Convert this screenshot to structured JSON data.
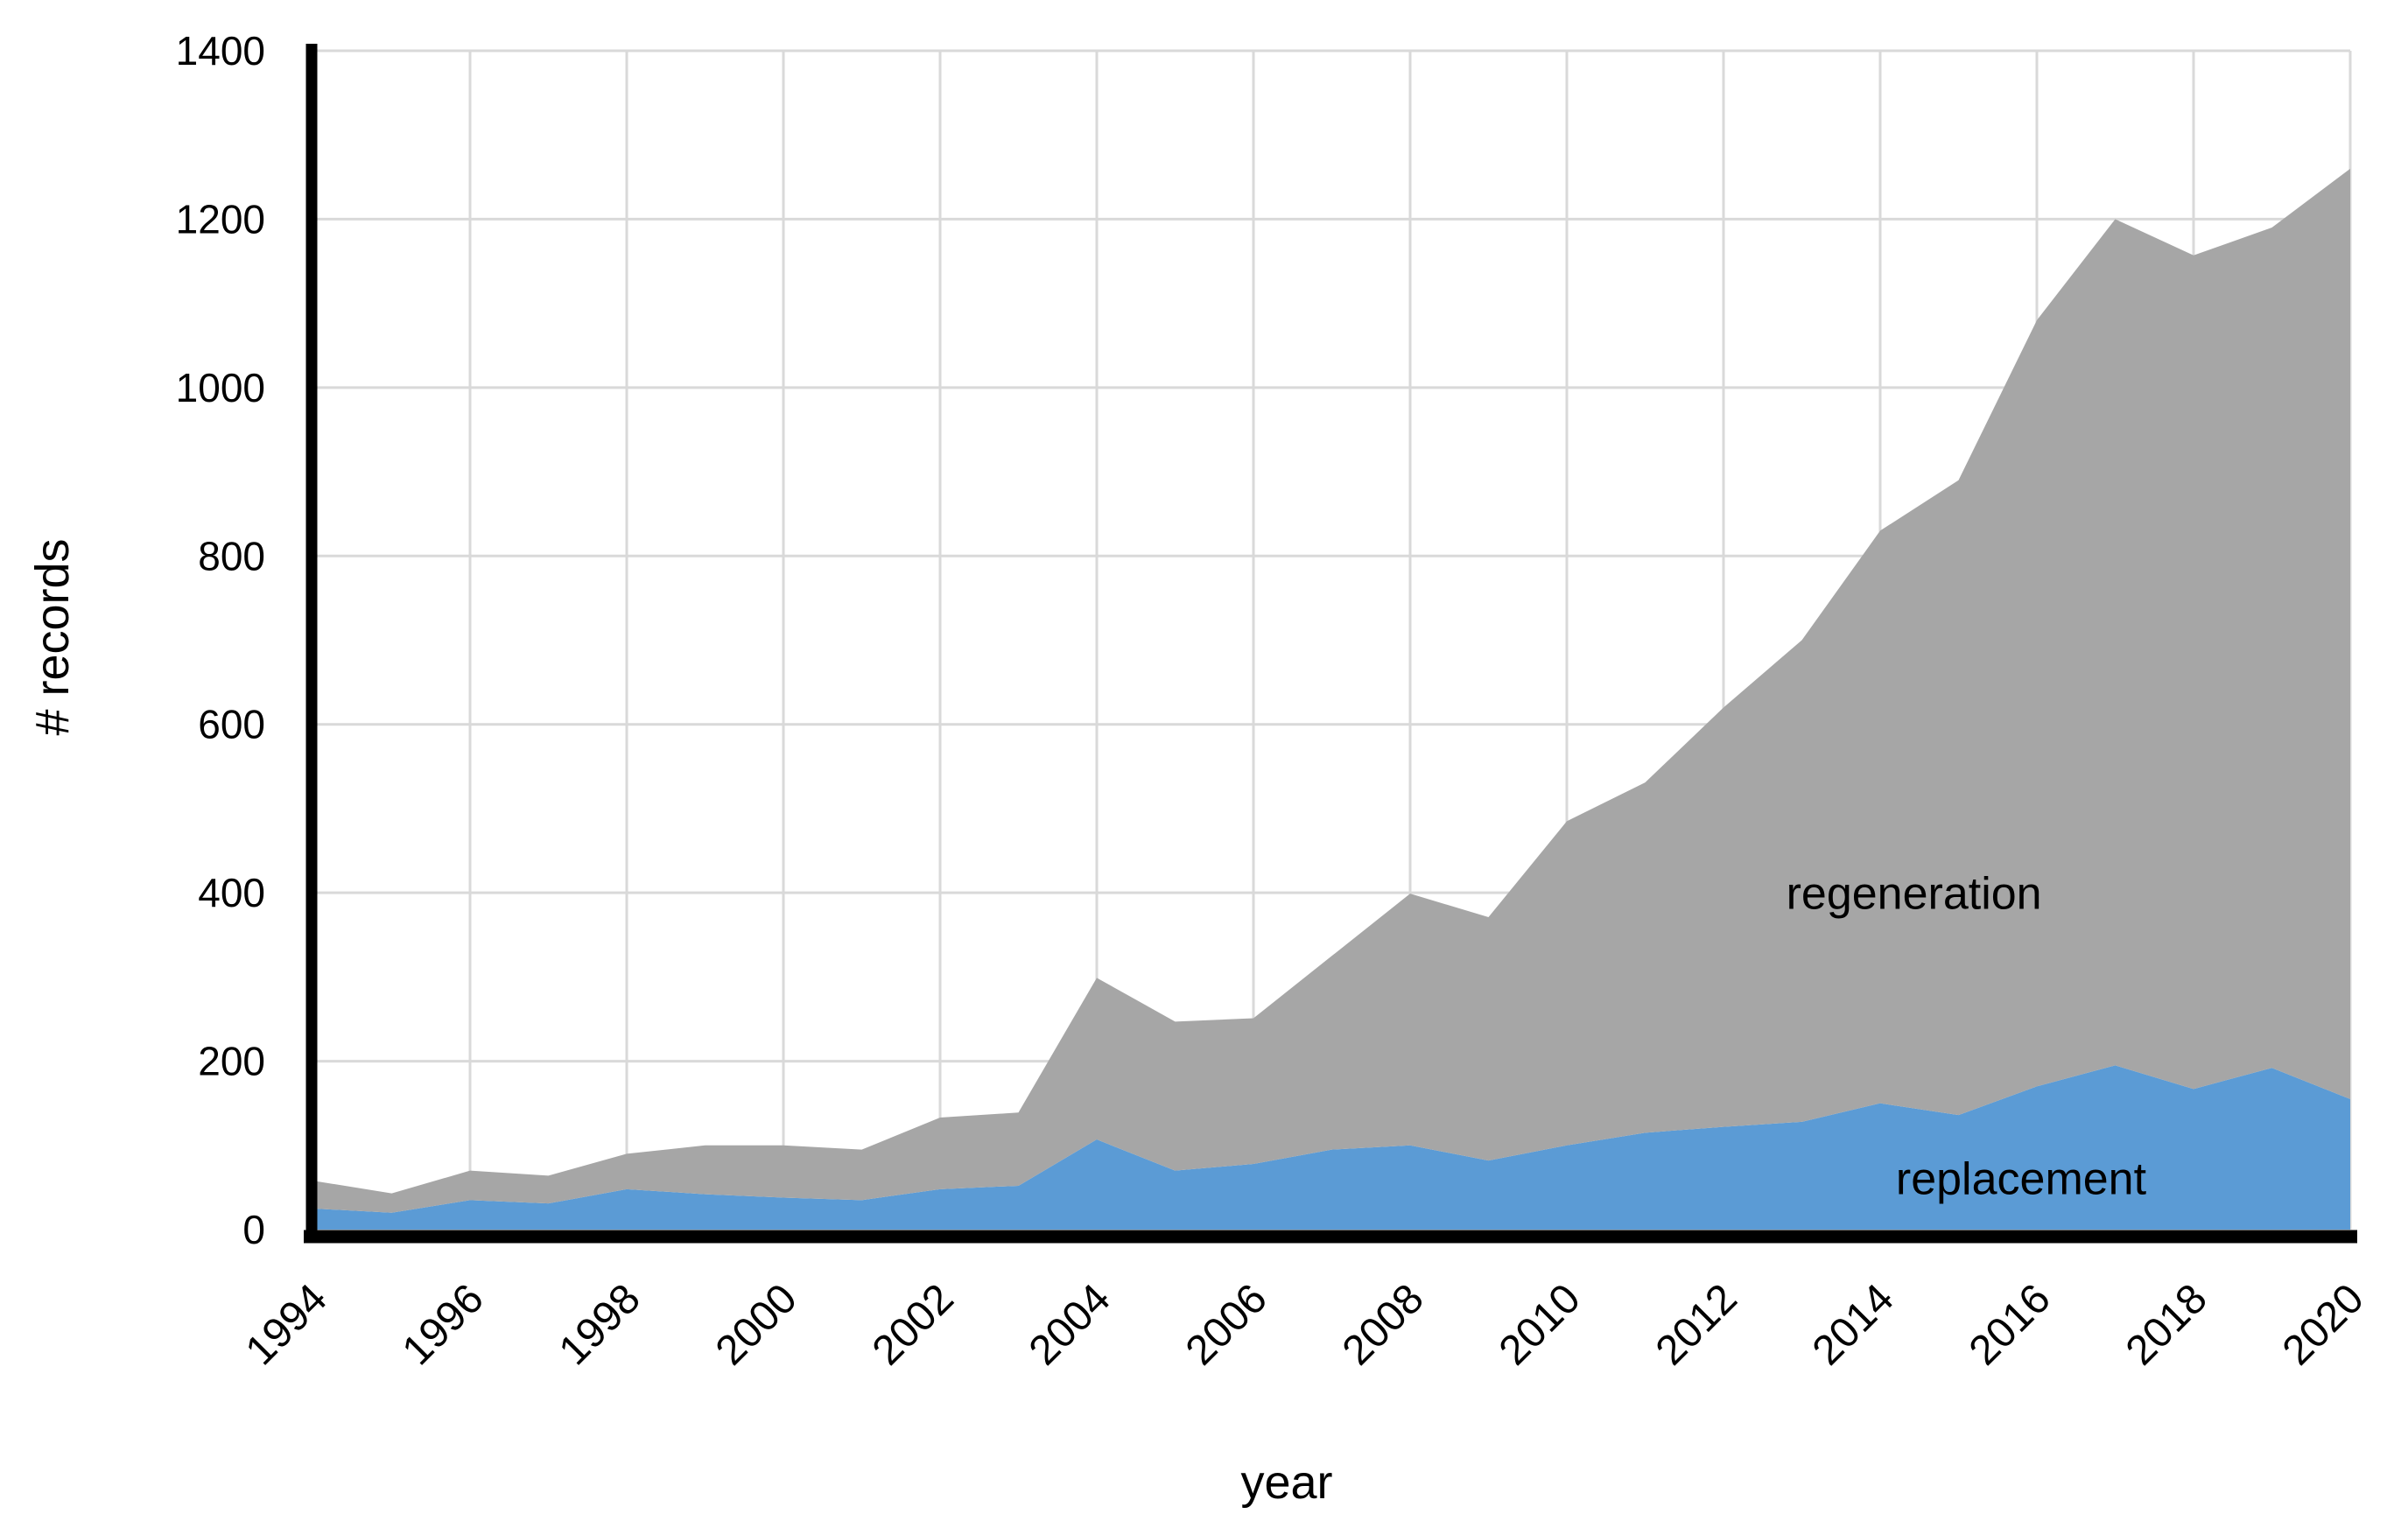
{
  "figure": {
    "background": "#FFFFFF"
  },
  "chart_data": {
    "type": "area",
    "stacked": true,
    "title": "",
    "xlabel": "year",
    "ylabel": "# records",
    "xlim": [
      1994,
      2020
    ],
    "ylim": [
      0,
      1400
    ],
    "grid": true,
    "gridline_color": "#D9D9D9",
    "axis_color": "#000000",
    "legend_position": "inline-labels",
    "x": [
      1994,
      1995,
      1996,
      1997,
      1998,
      1999,
      2000,
      2001,
      2002,
      2003,
      2004,
      2005,
      2006,
      2007,
      2008,
      2009,
      2010,
      2011,
      2012,
      2013,
      2014,
      2015,
      2016,
      2017,
      2018,
      2019,
      2020
    ],
    "x_ticks": [
      1994,
      1996,
      1998,
      2000,
      2002,
      2004,
      2006,
      2008,
      2010,
      2012,
      2014,
      2016,
      2018,
      2020
    ],
    "y_ticks": [
      0,
      200,
      400,
      600,
      800,
      1000,
      1200,
      1400
    ],
    "series": [
      {
        "name": "replacement",
        "color": "#5B9BD5",
        "values": [
          25,
          20,
          35,
          31,
          48,
          42,
          38,
          35,
          48,
          52,
          107,
          70,
          78,
          95,
          100,
          82,
          100,
          115,
          122,
          128,
          150,
          136,
          170,
          195,
          167,
          192,
          155
        ]
      },
      {
        "name": "regeneration",
        "color": "#A6A6A6",
        "values": [
          33,
          23,
          35,
          33,
          42,
          58,
          62,
          60,
          85,
          87,
          192,
          177,
          173,
          230,
          299,
          289,
          385,
          416,
          498,
          572,
          680,
          754,
          910,
          1005,
          990,
          998,
          1105
        ]
      }
    ],
    "stacked_totals": [
      58,
      43,
      70,
      64,
      90,
      100,
      100,
      95,
      133,
      139,
      299,
      247,
      251,
      325,
      399,
      371,
      485,
      531,
      620,
      700,
      830,
      890,
      1080,
      1200,
      1157,
      1190,
      1260
    ],
    "annotations": [
      {
        "text": "regeneration",
        "x": 2012.8,
        "y": 381,
        "color": "#000000"
      },
      {
        "text": "replacement",
        "x": 2014.2,
        "y": 42,
        "color": "#000000"
      }
    ]
  }
}
